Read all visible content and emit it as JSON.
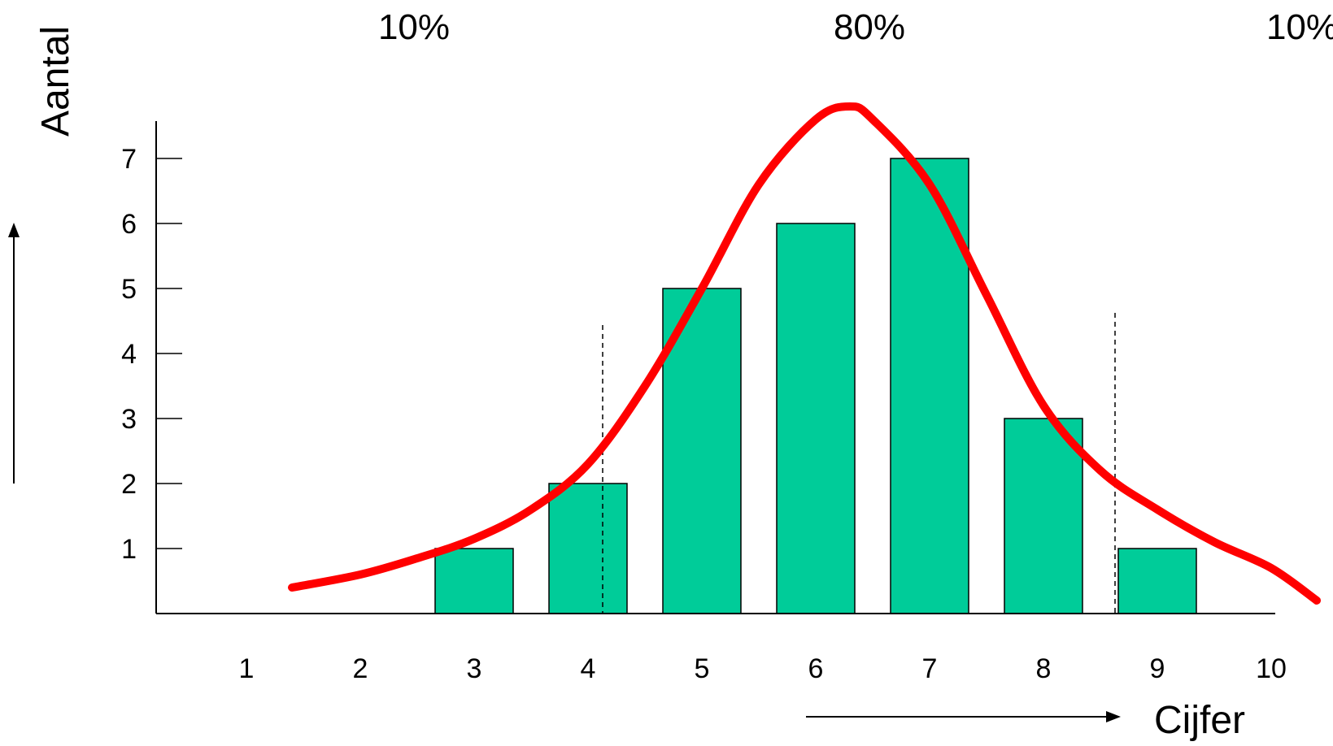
{
  "chart_data": {
    "type": "bar",
    "categories": [
      "1",
      "2",
      "3",
      "4",
      "5",
      "6",
      "7",
      "8",
      "9",
      "10"
    ],
    "values": [
      0,
      0,
      1,
      2,
      5,
      6,
      7,
      3,
      1,
      0
    ],
    "bar_color": "#00cc99",
    "curve": {
      "type": "line",
      "color": "#ff0000",
      "points": [
        [
          1.4,
          0.4
        ],
        [
          2,
          0.6
        ],
        [
          2.5,
          0.85
        ],
        [
          3,
          1.15
        ],
        [
          3.5,
          1.6
        ],
        [
          4,
          2.3
        ],
        [
          4.5,
          3.5
        ],
        [
          5,
          5.0
        ],
        [
          5.5,
          6.6
        ],
        [
          6,
          7.6
        ],
        [
          6.3,
          7.8
        ],
        [
          6.5,
          7.6
        ],
        [
          7,
          6.6
        ],
        [
          7.5,
          4.9
        ],
        [
          8,
          3.2
        ],
        [
          8.5,
          2.2
        ],
        [
          9,
          1.6
        ],
        [
          9.5,
          1.1
        ],
        [
          10,
          0.7
        ],
        [
          10.4,
          0.2
        ]
      ]
    },
    "dividers": [
      4.2,
      8.7
    ],
    "percentages": [
      {
        "label": "10%",
        "x": 2.5
      },
      {
        "label": "80%",
        "x": 6.5
      },
      {
        "label": "10%",
        "x": 10.3
      }
    ],
    "ylabel": "Aantal",
    "xlabel": "Cijfer",
    "yticks": [
      1,
      2,
      3,
      4,
      5,
      6,
      7
    ],
    "ylim": [
      0,
      7.6
    ],
    "xlim": [
      0.2,
      10.0
    ],
    "grid": false
  }
}
